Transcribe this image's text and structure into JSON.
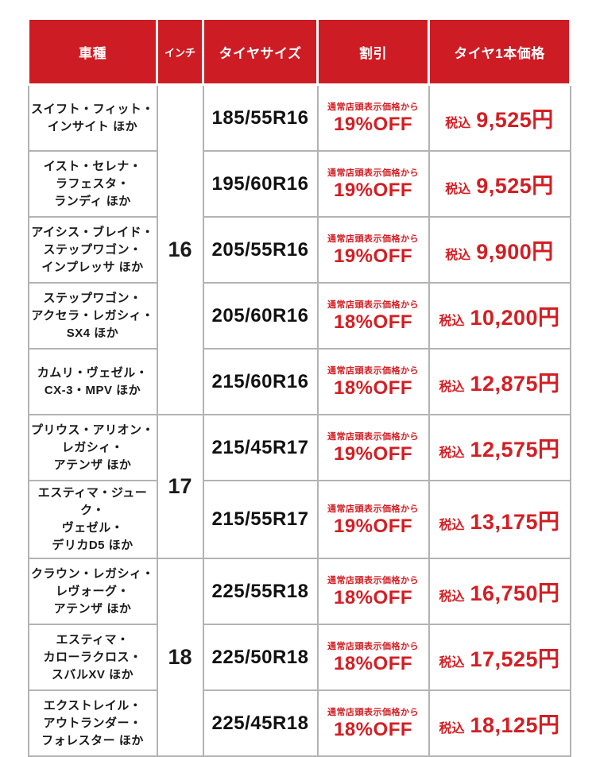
{
  "colors": {
    "header_bg": "#ce1c24",
    "accent_red": "#d41e23",
    "border_gray": "#b3b3b3"
  },
  "table": {
    "headers": {
      "cars": "車種",
      "inch": "インチ",
      "size": "タイヤサイズ",
      "discount": "割引",
      "price": "タイヤ1本価格"
    },
    "discount_note": "通常店頭表示価格から",
    "tax_label": "税込",
    "inch_groups": [
      {
        "inch": "16",
        "rowspan": 5
      },
      {
        "inch": "17",
        "rowspan": 2
      },
      {
        "inch": "18",
        "rowspan": 3
      }
    ],
    "rows": [
      {
        "cars": [
          "スイフト・フィット・",
          "インサイト ほか"
        ],
        "size": "185/55R16",
        "discount": "19%OFF",
        "price": "9,525円"
      },
      {
        "cars": [
          "イスト・セレナ・",
          "ラフェスタ・",
          "ランディ ほか"
        ],
        "size": "195/60R16",
        "discount": "19%OFF",
        "price": "9,525円"
      },
      {
        "cars": [
          "アイシス・ブレイド・",
          "ステップワゴン・",
          "インプレッサ ほか"
        ],
        "size": "205/55R16",
        "discount": "19%OFF",
        "price": "9,900円"
      },
      {
        "cars": [
          "ステップワゴン・",
          "アクセラ・レガシィ・",
          "SX4 ほか"
        ],
        "size": "205/60R16",
        "discount": "18%OFF",
        "price": "10,200円"
      },
      {
        "cars": [
          "カムリ・ヴェゼル・",
          "CX-3・MPV ほか"
        ],
        "size": "215/60R16",
        "discount": "18%OFF",
        "price": "12,875円"
      },
      {
        "cars": [
          "プリウス・アリオン・",
          "レガシィ・",
          "アテンザ ほか"
        ],
        "size": "215/45R17",
        "discount": "19%OFF",
        "price": "12,575円"
      },
      {
        "cars": [
          "エスティマ・ジューク・",
          "ヴェゼル・",
          "デリカD5 ほか"
        ],
        "size": "215/55R17",
        "discount": "19%OFF",
        "price": "13,175円"
      },
      {
        "cars": [
          "クラウン・レガシィ・",
          "レヴォーグ・",
          "アテンザ ほか"
        ],
        "size": "225/55R18",
        "discount": "18%OFF",
        "price": "16,750円"
      },
      {
        "cars": [
          "エスティマ・",
          "カローラクロス・",
          "スバルXV ほか"
        ],
        "size": "225/50R18",
        "discount": "18%OFF",
        "price": "17,525円"
      },
      {
        "cars": [
          "エクストレイル・",
          "アウトランダー・",
          "フォレスター ほか"
        ],
        "size": "225/45R18",
        "discount": "18%OFF",
        "price": "18,125円"
      }
    ]
  }
}
